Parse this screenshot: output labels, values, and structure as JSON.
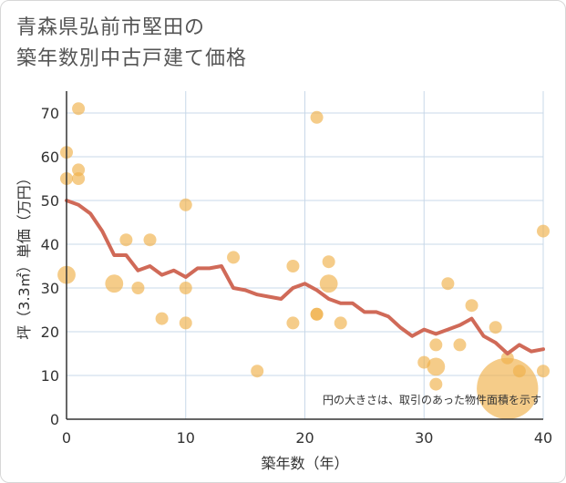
{
  "chart_data": {
    "type": "scatter",
    "title_lines": [
      "青森県弘前市堅田の",
      "築年数別中古戸建て価格"
    ],
    "xlabel": "築年数（年）",
    "ylabel": "坪（3.3㎡）単価（万円）",
    "xlim": [
      0,
      40
    ],
    "ylim": [
      0,
      75
    ],
    "x_ticks": [
      0,
      10,
      20,
      30,
      40
    ],
    "y_ticks": [
      0,
      10,
      20,
      30,
      40,
      50,
      60,
      70
    ],
    "grid": true,
    "annotation": "円の大きさは、取引のあった物件面積を示す",
    "colors": {
      "bubble": "#f0b04a",
      "line": "#d06a58",
      "grid": "#c8d8e8"
    },
    "series": [
      {
        "name": "bubbles",
        "points": [
          {
            "x": 0,
            "y": 61,
            "size": 1
          },
          {
            "x": 0,
            "y": 55,
            "size": 1
          },
          {
            "x": 0,
            "y": 33,
            "size": 2
          },
          {
            "x": 1,
            "y": 71,
            "size": 1
          },
          {
            "x": 1,
            "y": 57,
            "size": 1
          },
          {
            "x": 1,
            "y": 55,
            "size": 1
          },
          {
            "x": 4,
            "y": 31,
            "size": 2
          },
          {
            "x": 5,
            "y": 41,
            "size": 1
          },
          {
            "x": 6,
            "y": 30,
            "size": 1
          },
          {
            "x": 7,
            "y": 41,
            "size": 1
          },
          {
            "x": 8,
            "y": 23,
            "size": 1
          },
          {
            "x": 10,
            "y": 49,
            "size": 1
          },
          {
            "x": 10,
            "y": 30,
            "size": 1
          },
          {
            "x": 10,
            "y": 22,
            "size": 1
          },
          {
            "x": 14,
            "y": 37,
            "size": 1
          },
          {
            "x": 16,
            "y": 11,
            "size": 1
          },
          {
            "x": 19,
            "y": 35,
            "size": 1
          },
          {
            "x": 19,
            "y": 22,
            "size": 1
          },
          {
            "x": 21,
            "y": 69,
            "size": 1
          },
          {
            "x": 21,
            "y": 24,
            "size": 1
          },
          {
            "x": 21,
            "y": 24,
            "size": 1
          },
          {
            "x": 22,
            "y": 36,
            "size": 1
          },
          {
            "x": 22,
            "y": 31,
            "size": 2
          },
          {
            "x": 23,
            "y": 22,
            "size": 1
          },
          {
            "x": 30,
            "y": 13,
            "size": 1
          },
          {
            "x": 31,
            "y": 17,
            "size": 1
          },
          {
            "x": 31,
            "y": 12,
            "size": 2
          },
          {
            "x": 31,
            "y": 8,
            "size": 1
          },
          {
            "x": 32,
            "y": 31,
            "size": 1
          },
          {
            "x": 33,
            "y": 17,
            "size": 1
          },
          {
            "x": 34,
            "y": 26,
            "size": 1
          },
          {
            "x": 36,
            "y": 21,
            "size": 1
          },
          {
            "x": 37,
            "y": 7,
            "size": 8
          },
          {
            "x": 37,
            "y": 14,
            "size": 1
          },
          {
            "x": 38,
            "y": 11,
            "size": 1
          },
          {
            "x": 40,
            "y": 43,
            "size": 1
          },
          {
            "x": 40,
            "y": 11,
            "size": 1
          }
        ]
      },
      {
        "name": "average",
        "x": [
          0,
          1,
          2,
          3,
          4,
          5,
          6,
          7,
          8,
          9,
          10,
          11,
          12,
          13,
          14,
          15,
          16,
          17,
          18,
          19,
          20,
          21,
          22,
          23,
          24,
          25,
          26,
          27,
          28,
          29,
          30,
          31,
          32,
          33,
          34,
          35,
          36,
          37,
          38,
          39,
          40
        ],
        "y": [
          50,
          49,
          47,
          43,
          37.5,
          37.5,
          34,
          35,
          33,
          34,
          32.5,
          34.5,
          34.5,
          35,
          30,
          29.5,
          28.5,
          28,
          27.5,
          30,
          31,
          29.5,
          27.5,
          26.5,
          26.5,
          24.5,
          24.5,
          23.5,
          21,
          19,
          20.5,
          19.5,
          20.5,
          21.5,
          23,
          19,
          17.5,
          15,
          17,
          15.5,
          16
        ]
      }
    ]
  }
}
